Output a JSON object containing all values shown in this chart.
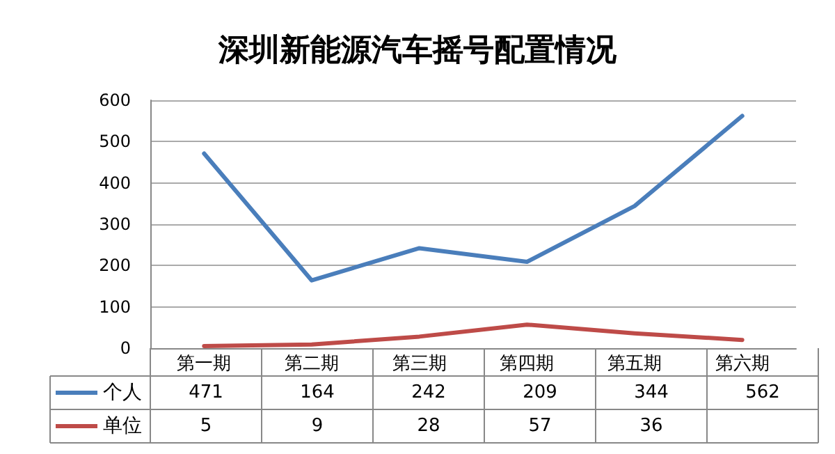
{
  "chart_data": {
    "type": "line",
    "title": "深圳新能源汽车摇号配置情况",
    "categories": [
      "第一期",
      "第二期",
      "第三期",
      "第四期",
      "第五期",
      "第六期"
    ],
    "series": [
      {
        "name": "个人",
        "color": "#4a7ebb",
        "values": [
          471,
          164,
          242,
          209,
          344,
          562
        ],
        "value_labels": [
          "471",
          "164",
          "242",
          "209",
          "344",
          "562"
        ]
      },
      {
        "name": "单位",
        "color": "#be4b48",
        "values": [
          5,
          9,
          28,
          57,
          36,
          20
        ],
        "value_labels": [
          "5",
          "9",
          "28",
          "57",
          "36",
          null
        ]
      }
    ],
    "ylim": [
      0,
      600
    ],
    "yticks": [
      0,
      100,
      200,
      300,
      400,
      500,
      600
    ],
    "grid": "y",
    "legend": "bottom",
    "marker": "none",
    "line_style": "solid"
  }
}
